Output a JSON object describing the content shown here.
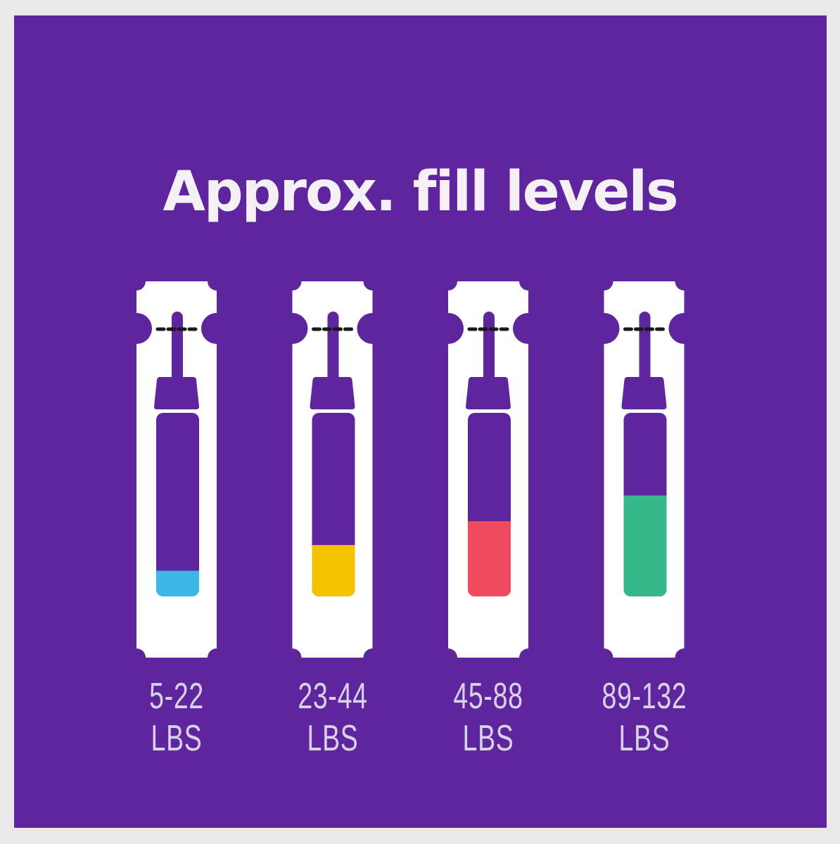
{
  "title": "Approx. fill levels",
  "colors": {
    "background": "#5e259e",
    "card": "#ffffff",
    "dash": "#1a1a1a"
  },
  "items": [
    {
      "label": "5-22 LBS",
      "fill_fraction": 0.14,
      "color": "#3db7e6"
    },
    {
      "label": "23-44 LBS",
      "fill_fraction": 0.28,
      "color": "#f3c300"
    },
    {
      "label": "45-88 LBS",
      "fill_fraction": 0.41,
      "color": "#ef4b5e"
    },
    {
      "label": "89-132 LBS",
      "fill_fraction": 0.55,
      "color": "#35b98a"
    }
  ]
}
